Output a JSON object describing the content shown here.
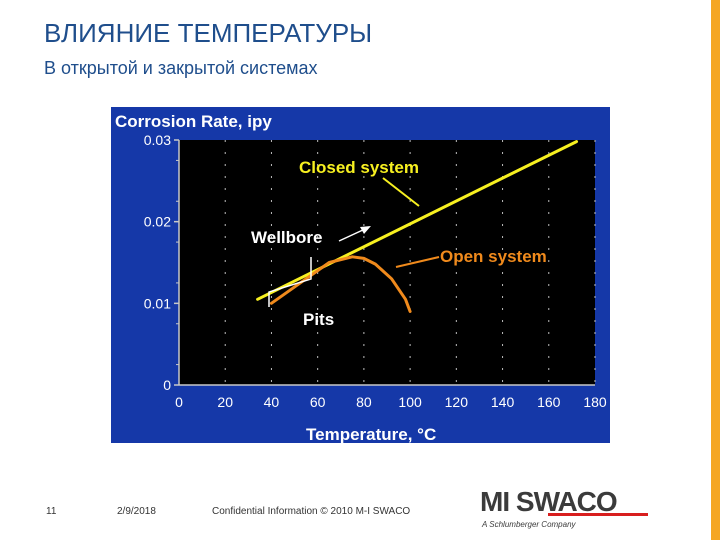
{
  "slide": {
    "title": "ВЛИЯНИЕ ТЕМПЕРАТУРЫ",
    "subtitle": "В открытой и закрытой системах"
  },
  "footer": {
    "page_number": "11",
    "date": "2/9/2018",
    "confidential": "Confidential Information  © 2010 M-I SWACO"
  },
  "logo": {
    "brand_mi": "MI",
    "brand_swaco": "SWACO",
    "tagline": "A Schlumberger Company"
  },
  "colors": {
    "accent": "#f5a623",
    "title_blue": "#1f4e8c",
    "chart_bg": "#1538a8",
    "plot_bg": "#000000",
    "closed_line": "#f7f020",
    "open_line": "#f08a1c"
  },
  "chart_data": {
    "type": "line",
    "title": "Corrosion Rate, ipy",
    "xlabel": "Temperature, °C",
    "ylabel": "",
    "xlim": [
      0,
      180
    ],
    "ylim": [
      0,
      0.03
    ],
    "x_ticks": [
      "0",
      "20",
      "40",
      "60",
      "80",
      "100",
      "120",
      "140",
      "160",
      "180"
    ],
    "y_ticks": [
      "0",
      "0.01",
      "0.02",
      "0.03"
    ],
    "grid": "vertical dashed",
    "series": [
      {
        "name": "Closed system",
        "x": [
          34,
          172
        ],
        "y": [
          0.0105,
          0.0298
        ]
      },
      {
        "name": "Open system",
        "x": [
          40,
          55,
          65,
          75,
          80,
          85,
          92,
          98,
          100
        ],
        "y": [
          0.01,
          0.013,
          0.015,
          0.0157,
          0.0155,
          0.0148,
          0.013,
          0.0105,
          0.009
        ]
      }
    ],
    "annotations": {
      "closed_system": "Closed system",
      "open_system": "Open system",
      "wellbore": "Wellbore",
      "pits": "Pits"
    }
  }
}
